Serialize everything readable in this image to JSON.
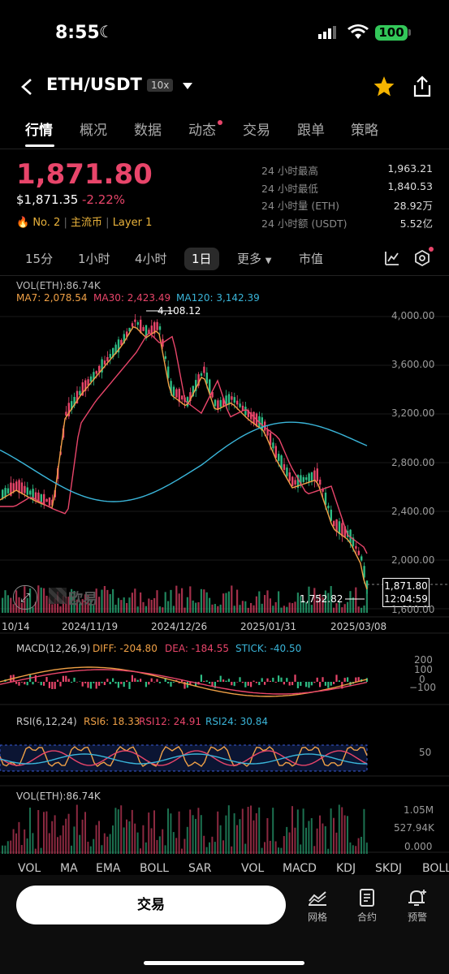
{
  "status_bar": {
    "time": "8:55",
    "battery": "100"
  },
  "header": {
    "pair": "ETH/USDT",
    "leverage": "10x"
  },
  "tabs": [
    "行情",
    "概况",
    "数据",
    "动态",
    "交易",
    "跟单",
    "策略"
  ],
  "ticker": {
    "last_price": "1,871.80",
    "usd_price": "$1,871.35",
    "change": "-2.22%",
    "rank": "No. 2",
    "tags": [
      "主流币",
      "Layer 1"
    ],
    "stats": [
      {
        "label": "24 小时最高",
        "value": "1,963.21"
      },
      {
        "label": "24 小时最低",
        "value": "1,840.53"
      },
      {
        "label": "24 小时量 (ETH)",
        "value": "28.92万"
      },
      {
        "label": "24 小时额 (USDT)",
        "value": "5.52亿"
      }
    ]
  },
  "timeframes": {
    "items": [
      "15分",
      "1小时",
      "4小时",
      "1日"
    ],
    "selected": "1日",
    "more": "更多",
    "market_cap": "市值"
  },
  "main_chart": {
    "vol_label": "VOL(ETH):86.74K",
    "ma7": "MA7: 2,078.54",
    "ma30": "MA30: 2,423.49",
    "ma120": "MA120: 3,142.39",
    "high_marker": "4,108.12",
    "low_marker": "1,752.82",
    "price_tag": "1,871.80",
    "countdown": "12:04:59",
    "watermark": "欧易",
    "y_ticks": [
      "4,000.00",
      "3,600.00",
      "3,200.00",
      "2,800.00",
      "2,400.00",
      "2,000.00",
      "1,600.00"
    ],
    "x_ticks": [
      "10/14",
      "2024/11/19",
      "2024/12/26",
      "2025/01/31",
      "2025/03/08"
    ]
  },
  "macd": {
    "title": "MACD(12,26,9)",
    "diff": "DIFF: -204.80",
    "dea": "DEA: -184.55",
    "stick": "STICK: -40.50",
    "y_ticks": [
      "200",
      "100",
      "0",
      "−100"
    ]
  },
  "rsi": {
    "title": "RSI(6,12,24)",
    "rsi6": "RSI6: 18.33",
    "rsi12": "RSI12: 24.91",
    "rsi24": "RSI24: 30.84",
    "y_ticks": [
      "50"
    ]
  },
  "volume": {
    "title": "VOL(ETH):86.74K",
    "y_ticks": [
      "1.05M",
      "527.94K",
      "0.000"
    ]
  },
  "indicator_tabs": [
    "VOL",
    "MA",
    "EMA",
    "BOLL",
    "SAR",
    "VOL",
    "MACD",
    "KDJ",
    "SKDJ",
    "BOLL"
  ],
  "bottom_bar": {
    "trade": "交易",
    "grid": "网格",
    "contract": "合约",
    "alert": "预警"
  },
  "colors": {
    "up": "#2ebd85",
    "down": "#e8456a",
    "ma7": "#f0a146",
    "ma30": "#e8456a",
    "ma120": "#3ab5d9"
  },
  "icons": [
    "back-icon",
    "dropdown-icon",
    "star-icon",
    "share-icon",
    "line-chart-icon",
    "settings-icon",
    "expand-icon",
    "grid-icon",
    "contract-icon",
    "alert-icon"
  ]
}
